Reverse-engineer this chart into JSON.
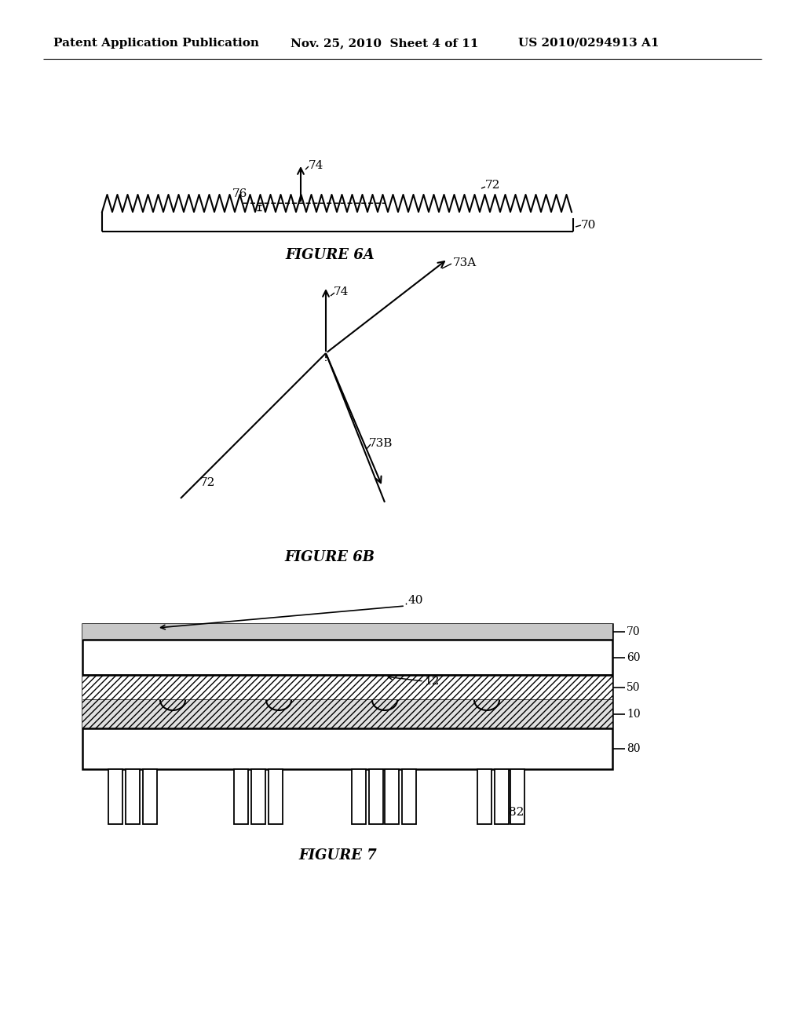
{
  "bg_color": "#ffffff",
  "header_text": "Patent Application Publication",
  "header_date": "Nov. 25, 2010  Sheet 4 of 11",
  "header_patent": "US 2010/0294913 A1",
  "fig6a_caption": "FIGURE 6A",
  "fig6b_caption": "FIGURE 6B",
  "fig7_caption": "FIGURE 7"
}
